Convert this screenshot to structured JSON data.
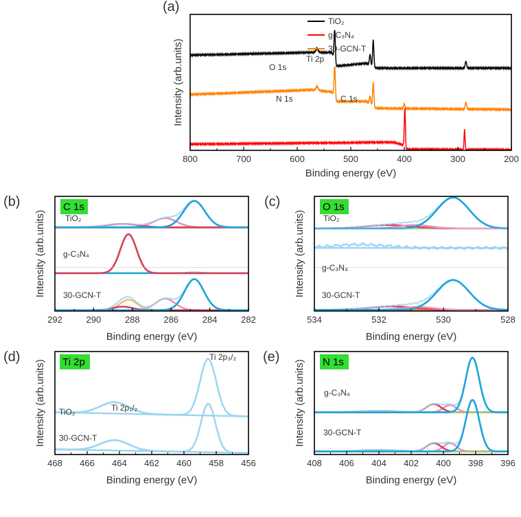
{
  "chart_data": [
    {
      "id": "a",
      "panel_label": "(a)",
      "type": "line",
      "xlabel": "Binding energy (eV)",
      "ylabel": "Intensity (arb.units)",
      "xlim": [
        800,
        200
      ],
      "ylim": [
        0,
        100
      ],
      "xticks": [
        800,
        700,
        600,
        500,
        400,
        300,
        200
      ],
      "legend": [
        {
          "label": "TiO₂",
          "color": "#000000"
        },
        {
          "label": "g-C₃N₄",
          "color": "#ff0000"
        },
        {
          "label": "30-GCN-T",
          "color": "#ff8000"
        }
      ],
      "peak_labels": [
        "O 1s",
        "Ti 2p",
        "N 1s",
        "C 1s"
      ],
      "series": [
        {
          "name": "TiO₂",
          "color": "#000000",
          "baseline": [
            [
              800,
              70
            ],
            [
              575,
              72
            ],
            [
              535,
              72
            ],
            [
              528,
              62
            ],
            [
              470,
              64
            ],
            [
              455,
              60.5
            ],
            [
              200,
              60.5
            ]
          ],
          "peaks": [
            [
              563,
              3,
              2
            ],
            [
              530,
              24,
              1.2
            ],
            [
              464,
              8,
              1.2
            ],
            [
              458,
              20,
              1.2
            ],
            [
              285,
              5,
              1.3
            ]
          ]
        },
        {
          "name": "30-GCN-T",
          "color": "#ff8000",
          "baseline": [
            [
              800,
              41
            ],
            [
              575,
              44.5
            ],
            [
              535,
              43
            ],
            [
              528,
              36
            ],
            [
              470,
              36
            ],
            [
              455,
              31
            ],
            [
              200,
              30
            ]
          ],
          "peaks": [
            [
              563,
              3,
              2
            ],
            [
              530,
              24,
              1.2
            ],
            [
              464,
              6,
              1.2
            ],
            [
              458,
              18,
              1.2
            ],
            [
              400,
              3,
              1.3
            ],
            [
              285,
              5,
              1.3
            ]
          ]
        },
        {
          "name": "g-C₃N₄",
          "color": "#ff0000",
          "baseline": [
            [
              800,
              4.5
            ],
            [
              420,
              6
            ],
            [
              402,
              4
            ],
            [
              396,
              0.8
            ],
            [
              200,
              0.4
            ]
          ],
          "peaks": [
            [
              399,
              29,
              1.0
            ],
            [
              287.5,
              15,
              0.9
            ]
          ]
        }
      ]
    },
    {
      "id": "b",
      "panel_label": "(b)",
      "badge": "C 1s",
      "type": "line",
      "xlabel": "Binding energy (eV)",
      "ylabel": "Intensity (arb.units)",
      "xlim": [
        292,
        282
      ],
      "ylim": [
        0,
        100
      ],
      "xticks": [
        292,
        290,
        288,
        286,
        284,
        282
      ],
      "samples": [
        {
          "label": "TiO₂",
          "baseline": 73,
          "baseline_color": "#d9405a",
          "components": [
            {
              "c": 284.8,
              "h": 23,
              "s": 0.55,
              "color": "#1fa3dc"
            },
            {
              "c": 286.3,
              "h": 8,
              "s": 0.6,
              "color": "#e891bb"
            },
            {
              "c": 288.5,
              "h": 3,
              "s": 0.8,
              "color": "#d9405a"
            }
          ]
        },
        {
          "label": "g-C₃N₄",
          "baseline": 33,
          "baseline_color": "#9ccf7a",
          "components": [
            {
              "c": 288.2,
              "h": 34,
              "s": 0.42,
              "color": "#d9405a"
            },
            {
              "c": 284.8,
              "h": 0.6,
              "s": 0.4,
              "color": "#1fa3dc"
            }
          ]
        },
        {
          "label": "30-GCN-T",
          "baseline": 0.8,
          "baseline_color": "#f28c28",
          "components": [
            {
              "c": 284.8,
              "h": 27,
              "s": 0.5,
              "color": "#1fa3dc"
            },
            {
              "c": 286.3,
              "h": 10,
              "s": 0.5,
              "color": "#e891bb"
            },
            {
              "c": 288.2,
              "h": 9,
              "s": 0.45,
              "color": "#f5b97a"
            },
            {
              "c": 288.5,
              "h": 3,
              "s": 0.5,
              "color": "#d9405a"
            }
          ]
        }
      ]
    },
    {
      "id": "c",
      "panel_label": "(c)",
      "badge": "O 1s",
      "type": "line",
      "xlabel": "Binding energy (eV)",
      "ylabel": "Intensity (arb.units)",
      "xlim": [
        534,
        528
      ],
      "ylim": [
        0,
        100
      ],
      "xticks": [
        534,
        532,
        530,
        528
      ],
      "samples": [
        {
          "label": "TiO₂",
          "baseline": 72,
          "baseline_color": "#9ccf7a",
          "components": [
            {
              "c": 529.7,
              "h": 27,
              "s": 0.5,
              "color": "#1fa3dc"
            },
            {
              "c": 531.7,
              "h": 3,
              "s": 0.7,
              "color": "#d9405a"
            },
            {
              "c": 530.9,
              "h": 3,
              "s": 0.5,
              "color": "#e891bb"
            }
          ]
        },
        {
          "label": "g-C₃N₄",
          "baseline": 55,
          "baseline_color": "#9dd5f0",
          "components": [
            {
              "c": 532.6,
              "h": 3,
              "s": 0.8,
              "color": "#9dd5f0"
            }
          ]
        },
        {
          "label": "30-GCN-T",
          "baseline": 1,
          "baseline_color": "#f28c28",
          "components": [
            {
              "c": 529.7,
              "h": 26,
              "s": 0.5,
              "color": "#1fa3dc"
            },
            {
              "c": 531.6,
              "h": 3,
              "s": 0.7,
              "color": "#d9405a"
            },
            {
              "c": 530.8,
              "h": 2.5,
              "s": 0.5,
              "color": "#e891bb"
            }
          ]
        }
      ]
    },
    {
      "id": "d",
      "panel_label": "(d)",
      "badge": "Ti 2p",
      "type": "line",
      "xlabel": "Binding energy (eV)",
      "ylabel": "Intensity (arb.units)",
      "xlim": [
        468,
        456
      ],
      "ylim": [
        0,
        100
      ],
      "xticks": [
        468,
        466,
        464,
        462,
        460,
        458,
        456
      ],
      "peak_labels": [
        "Ti 2p₁/₂",
        "Ti 2p₃/₂"
      ],
      "samples": [
        {
          "label": "TiO₂",
          "baseline": 41,
          "baseline_end": 37,
          "baseline_color": "#9dd5f0",
          "components": [
            {
              "c": 464.3,
              "h": 11,
              "s": 0.9,
              "color": "#9dd5f0"
            },
            {
              "c": 458.5,
              "h": 55,
              "s": 0.5,
              "color": "#9dd5f0"
            }
          ]
        },
        {
          "label": "30-GCN-T",
          "baseline": 5,
          "baseline_end": 1.5,
          "baseline_color": "#9dd5f0",
          "components": [
            {
              "c": 464.3,
              "h": 10,
              "s": 0.9,
              "color": "#9dd5f0"
            },
            {
              "c": 458.5,
              "h": 47,
              "s": 0.45,
              "color": "#9dd5f0"
            }
          ]
        }
      ]
    },
    {
      "id": "e",
      "panel_label": "(e)",
      "badge": "N 1s",
      "type": "line",
      "xlabel": "Binding energy (eV)",
      "ylabel": "Intensity (arb.units)",
      "xlim": [
        408,
        396
      ],
      "ylim": [
        0,
        100
      ],
      "xticks": [
        408,
        406,
        404,
        402,
        400,
        398,
        396
      ],
      "samples": [
        {
          "label": "g-C₃N₄",
          "baseline": 41,
          "baseline_color": "#f5b97a",
          "components": [
            {
              "c": 398.2,
              "h": 53,
              "s": 0.42,
              "color": "#1fa3dc"
            },
            {
              "c": 399.6,
              "h": 7,
              "s": 0.4,
              "color": "#e891bb"
            },
            {
              "c": 400.6,
              "h": 8,
              "s": 0.45,
              "color": "#d9405a"
            },
            {
              "c": 404,
              "h": 1.5,
              "s": 1.2,
              "color": "#9ccf7a"
            }
          ]
        },
        {
          "label": "30-GCN-T",
          "baseline": 3,
          "baseline_color": "#f5b97a",
          "components": [
            {
              "c": 398.2,
              "h": 50,
              "s": 0.42,
              "color": "#1fa3dc"
            },
            {
              "c": 399.6,
              "h": 8,
              "s": 0.4,
              "color": "#e891bb"
            },
            {
              "c": 400.6,
              "h": 8,
              "s": 0.45,
              "color": "#d9405a"
            },
            {
              "c": 404,
              "h": 1.5,
              "s": 1.2,
              "color": "#9ccf7a"
            }
          ]
        }
      ]
    }
  ],
  "colors": {
    "badge": "#33dd33",
    "envelope": "#9dd5f0"
  }
}
